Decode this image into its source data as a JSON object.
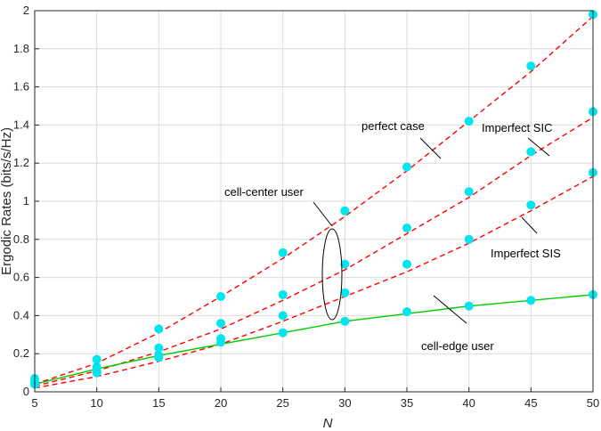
{
  "chart_data": {
    "type": "line",
    "xlabel": "N",
    "ylabel": "Ergodic Rates (bits/s/Hz)",
    "xlim": [
      5,
      50
    ],
    "ylim": [
      0,
      2
    ],
    "grid": true,
    "x_ticks": [
      5,
      10,
      15,
      20,
      25,
      30,
      35,
      40,
      45,
      50
    ],
    "y_ticks": [
      0,
      0.2,
      0.4,
      0.6,
      0.8,
      1,
      1.2,
      1.4,
      1.6,
      1.8,
      2
    ],
    "x_tick_labels": [
      "5",
      "10",
      "15",
      "20",
      "25",
      "30",
      "35",
      "40",
      "45",
      "50"
    ],
    "y_tick_labels": [
      "0",
      "0.2",
      "0.4",
      "0.6",
      "0.8",
      "1",
      "1.2",
      "1.4",
      "1.6",
      "1.8",
      "2"
    ],
    "colors": {
      "analytical": "#ff0000",
      "edge_analytical": "#00cc00",
      "simulation": "#00e5ee",
      "axis": "#262626",
      "grid": "#dcdcdc"
    },
    "series": [
      {
        "group": "cell-center",
        "style": "dashed",
        "label": "perfect case",
        "x": [
          5,
          10,
          15,
          20,
          25,
          30,
          35,
          40,
          45,
          50
        ],
        "analytical": [
          0.04,
          0.15,
          0.31,
          0.5,
          0.7,
          0.92,
          1.16,
          1.42,
          1.68,
          1.97
        ],
        "simulation": [
          0.07,
          0.17,
          0.33,
          0.5,
          0.73,
          0.95,
          1.18,
          1.42,
          1.71,
          1.98
        ]
      },
      {
        "group": "cell-center",
        "style": "dashed",
        "label": "Imperfect SIC",
        "x": [
          5,
          10,
          15,
          20,
          25,
          30,
          35,
          40,
          45,
          50
        ],
        "analytical": [
          0.03,
          0.11,
          0.21,
          0.33,
          0.48,
          0.64,
          0.83,
          1.02,
          1.24,
          1.44
        ],
        "simulation": [
          0.05,
          0.13,
          0.23,
          0.36,
          0.51,
          0.67,
          0.86,
          1.05,
          1.26,
          1.47
        ]
      },
      {
        "group": "cell-center",
        "style": "dashed",
        "label": "Imperfect SIS",
        "x": [
          5,
          10,
          15,
          20,
          25,
          30,
          35,
          40,
          45,
          50
        ],
        "analytical": [
          0.02,
          0.08,
          0.16,
          0.25,
          0.37,
          0.5,
          0.63,
          0.78,
          0.95,
          1.13
        ],
        "simulation": [
          0.04,
          0.1,
          0.18,
          0.28,
          0.4,
          0.52,
          0.67,
          0.8,
          0.98,
          1.15
        ]
      },
      {
        "group": "cell-edge",
        "style": "solid",
        "label": "cell-edge user",
        "x": [
          5,
          10,
          15,
          20,
          25,
          30,
          35,
          40,
          45,
          50
        ],
        "analytical": [
          0.04,
          0.12,
          0.19,
          0.25,
          0.31,
          0.37,
          0.41,
          0.45,
          0.48,
          0.51
        ],
        "simulation": [
          0.04,
          0.11,
          0.19,
          0.26,
          0.31,
          0.37,
          0.42,
          0.45,
          0.48,
          0.51
        ]
      }
    ],
    "annotations": [
      "perfect case",
      "Imperfect SIC",
      "cell-center user",
      "Imperfect SIS",
      "cell-edge user"
    ]
  }
}
